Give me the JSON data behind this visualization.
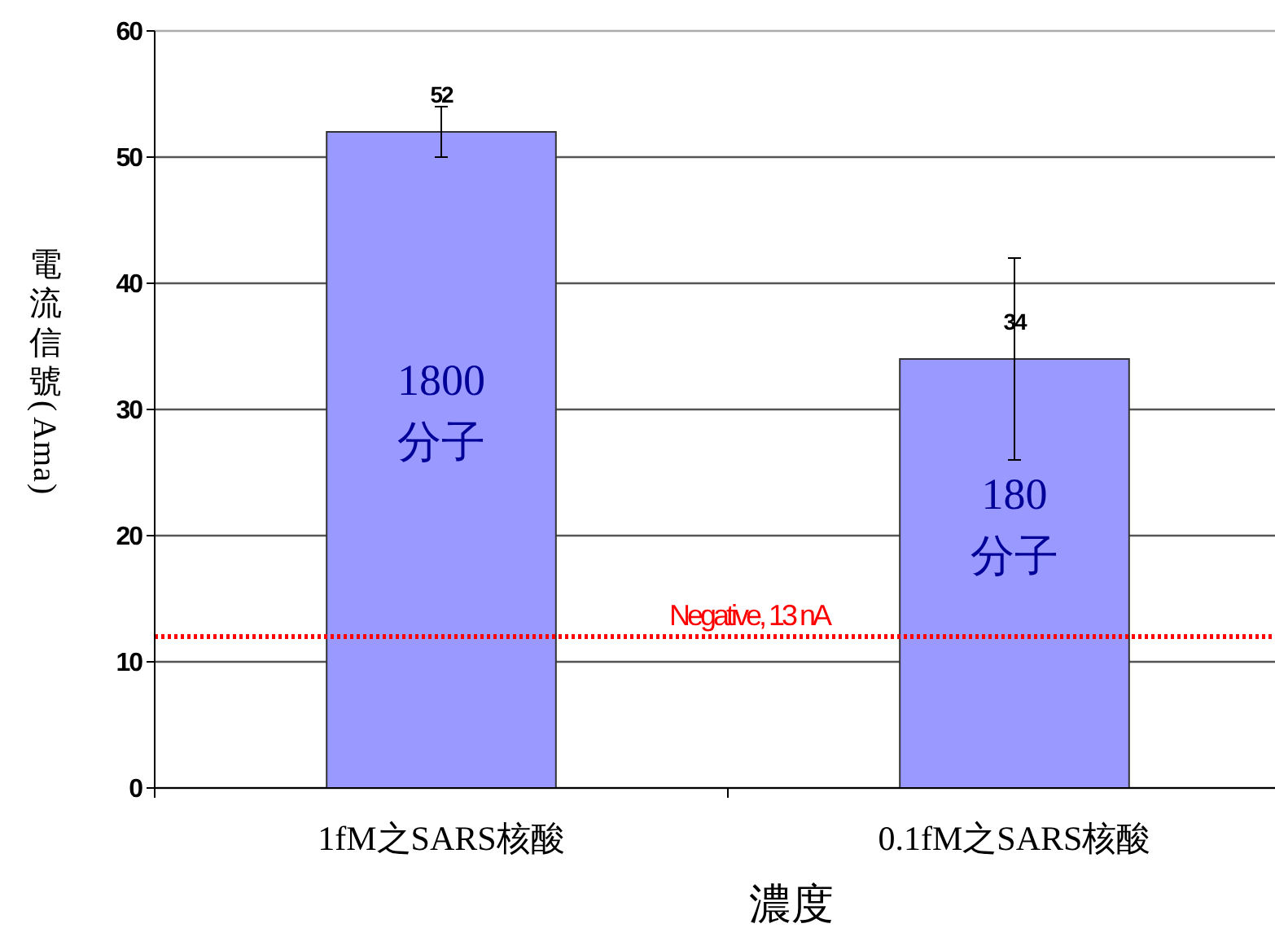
{
  "chart_data": {
    "type": "bar",
    "xlabel": "濃度",
    "ylabel": "電流信號(Ama)",
    "categories": [
      "1fM之SARS核酸",
      "0.1fM之SARS核酸"
    ],
    "values": [
      52,
      34
    ],
    "errors": [
      2,
      8
    ],
    "color": "#9999ff",
    "data_labels": true,
    "ylim": [
      0,
      60
    ],
    "yticks": [
      0,
      10,
      20,
      30,
      40,
      50,
      60
    ],
    "grid": "y",
    "ref_lines": [
      {
        "axis": "y",
        "value": 12,
        "label": "Negative, 13 nA",
        "color": "#ff0000",
        "line_style": "dotted"
      }
    ],
    "annotations": [
      "1800\n分子",
      "180\n分子"
    ]
  }
}
